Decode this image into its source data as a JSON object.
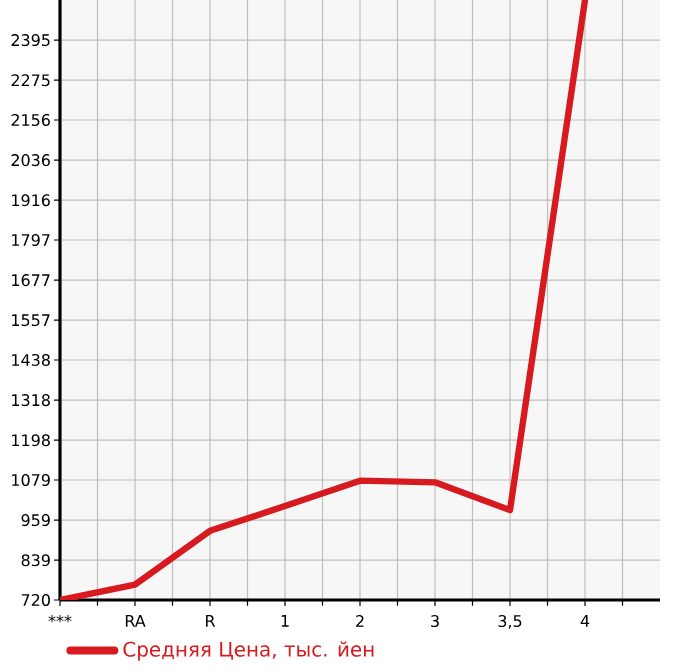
{
  "chart_data": {
    "type": "line",
    "categories": [
      "***",
      "RA",
      "R",
      "1",
      "2",
      "3",
      "3,5",
      "4"
    ],
    "series": [
      {
        "name": "Средняя Цена, тыс. йен",
        "color": "#d71a1f",
        "values": [
          720,
          766,
          927,
          1001,
          1077,
          1072,
          989,
          2515
        ]
      }
    ],
    "ylim": [
      720,
      2515
    ],
    "yticks": [
      720,
      839,
      959,
      1079,
      1198,
      1318,
      1438,
      1557,
      1677,
      1797,
      1916,
      2036,
      2156,
      2275,
      2395
    ],
    "grid": true,
    "legend": "bottom left",
    "marker": "none",
    "line_style": "solid"
  }
}
